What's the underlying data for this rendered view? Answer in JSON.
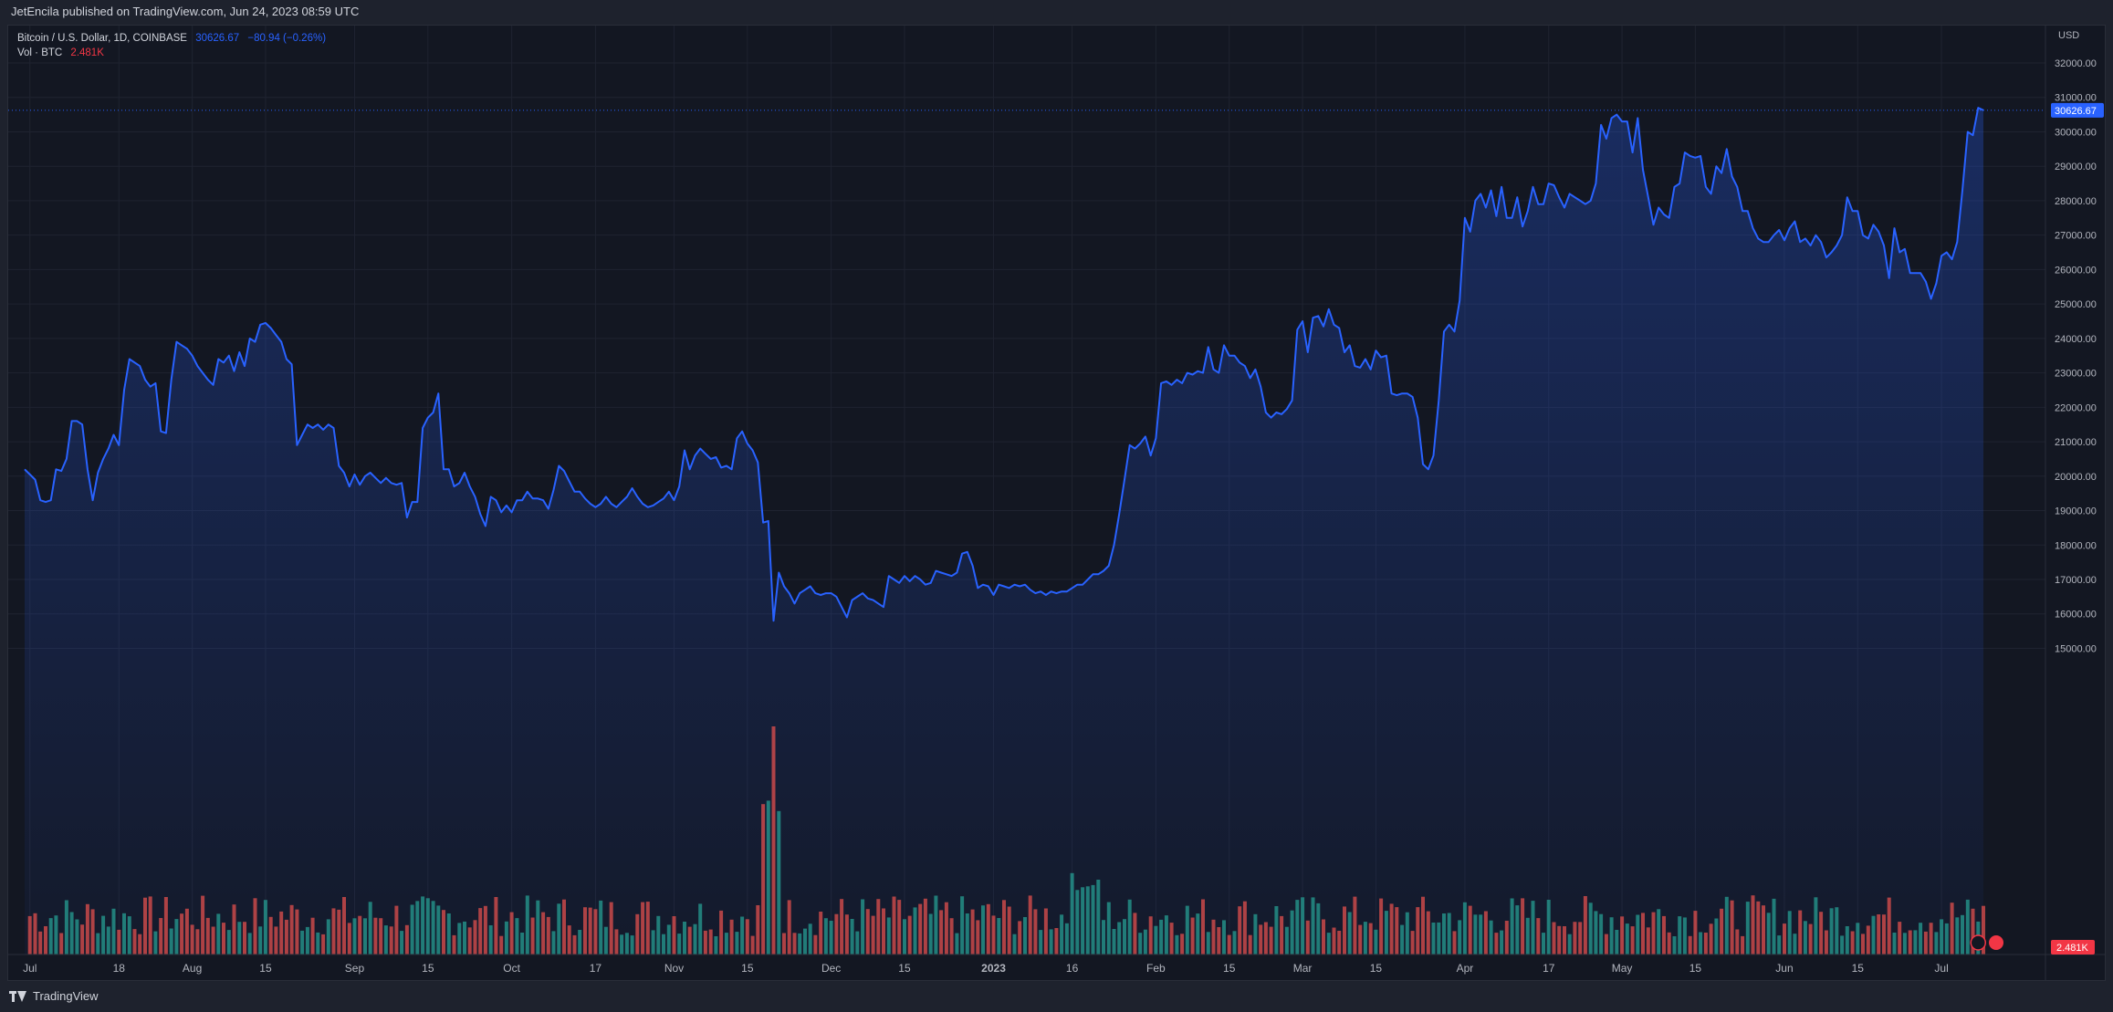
{
  "header": {
    "published": "JetEncila published on TradingView.com, Jun 24, 2023 08:59 UTC"
  },
  "legend": {
    "symbol": "Bitcoin / U.S. Dollar, 1D, COINBASE",
    "price": "30626.67",
    "change": "−80.94 (−0.26%)",
    "volume_label": "Vol · BTC",
    "volume_value": "2.481K"
  },
  "footer": {
    "brand": "TradingView"
  },
  "colors": {
    "line": "#2962ff",
    "up": "#26a69a",
    "down": "#ef5350",
    "bg": "#131722"
  },
  "chart_data": {
    "type": "area",
    "y_unit": "USD",
    "ylim": [
      14500,
      32500
    ],
    "y_ticks": [
      15000,
      16000,
      17000,
      18000,
      19000,
      20000,
      21000,
      22000,
      23000,
      24000,
      25000,
      26000,
      27000,
      28000,
      29000,
      30000,
      31000,
      32000
    ],
    "x_ticks": [
      {
        "label": "Jul",
        "day": 1
      },
      {
        "label": "18",
        "day": 18
      },
      {
        "label": "Aug",
        "day": 32
      },
      {
        "label": "15",
        "day": 46
      },
      {
        "label": "Sep",
        "day": 63
      },
      {
        "label": "15",
        "day": 77
      },
      {
        "label": "Oct",
        "day": 93
      },
      {
        "label": "17",
        "day": 109
      },
      {
        "label": "Nov",
        "day": 124
      },
      {
        "label": "15",
        "day": 138
      },
      {
        "label": "Dec",
        "day": 154
      },
      {
        "label": "15",
        "day": 168
      },
      {
        "label": "2023",
        "day": 185
      },
      {
        "label": "16",
        "day": 200
      },
      {
        "label": "Feb",
        "day": 216
      },
      {
        "label": "15",
        "day": 230
      },
      {
        "label": "Mar",
        "day": 244
      },
      {
        "label": "15",
        "day": 258
      },
      {
        "label": "Apr",
        "day": 275
      },
      {
        "label": "17",
        "day": 291
      },
      {
        "label": "May",
        "day": 305
      },
      {
        "label": "15",
        "day": 319
      },
      {
        "label": "Jun",
        "day": 336
      },
      {
        "label": "15",
        "day": 350
      },
      {
        "label": "Jul",
        "day": 366
      }
    ],
    "last_price": 30626.67,
    "last_volume": "2.481K",
    "x_range_days": [
      0,
      368
    ],
    "anchors": [
      [
        0,
        20200
      ],
      [
        1,
        20050
      ],
      [
        2,
        19900
      ],
      [
        3,
        19300
      ],
      [
        4,
        19250
      ],
      [
        5,
        19300
      ],
      [
        6,
        20200
      ],
      [
        7,
        20150
      ],
      [
        8,
        20500
      ],
      [
        9,
        21600
      ],
      [
        10,
        21600
      ],
      [
        11,
        21500
      ],
      [
        12,
        20200
      ],
      [
        13,
        19300
      ],
      [
        14,
        20100
      ],
      [
        15,
        20500
      ],
      [
        16,
        20800
      ],
      [
        17,
        21200
      ],
      [
        18,
        20900
      ],
      [
        19,
        22500
      ],
      [
        20,
        23400
      ],
      [
        21,
        23300
      ],
      [
        22,
        23200
      ],
      [
        23,
        22800
      ],
      [
        24,
        22600
      ],
      [
        25,
        22700
      ],
      [
        26,
        21300
      ],
      [
        27,
        21250
      ],
      [
        28,
        22800
      ],
      [
        29,
        23900
      ],
      [
        30,
        23800
      ],
      [
        31,
        23700
      ],
      [
        32,
        23500
      ],
      [
        33,
        23200
      ],
      [
        34,
        23000
      ],
      [
        35,
        22800
      ],
      [
        36,
        22650
      ],
      [
        37,
        23400
      ],
      [
        38,
        23300
      ],
      [
        39,
        23500
      ],
      [
        40,
        23050
      ],
      [
        41,
        23600
      ],
      [
        42,
        23200
      ],
      [
        43,
        24000
      ],
      [
        44,
        23900
      ],
      [
        45,
        24400
      ],
      [
        46,
        24450
      ],
      [
        47,
        24300
      ],
      [
        48,
        24100
      ],
      [
        49,
        23900
      ],
      [
        50,
        23400
      ],
      [
        51,
        23250
      ],
      [
        52,
        20900
      ],
      [
        53,
        21200
      ],
      [
        54,
        21500
      ],
      [
        55,
        21400
      ],
      [
        56,
        21500
      ],
      [
        57,
        21350
      ],
      [
        58,
        21500
      ],
      [
        59,
        21400
      ],
      [
        60,
        20300
      ],
      [
        61,
        20100
      ],
      [
        62,
        19700
      ],
      [
        63,
        20050
      ],
      [
        64,
        19750
      ],
      [
        65,
        20000
      ],
      [
        66,
        20100
      ],
      [
        67,
        19950
      ],
      [
        68,
        19800
      ],
      [
        69,
        19950
      ],
      [
        70,
        19800
      ],
      [
        71,
        19750
      ],
      [
        72,
        19800
      ],
      [
        73,
        18800
      ],
      [
        74,
        19250
      ],
      [
        75,
        19250
      ],
      [
        76,
        21400
      ],
      [
        77,
        21700
      ],
      [
        78,
        21850
      ],
      [
        79,
        22400
      ],
      [
        80,
        20200
      ],
      [
        81,
        20200
      ],
      [
        82,
        19700
      ],
      [
        83,
        19800
      ],
      [
        84,
        20100
      ],
      [
        85,
        19700
      ],
      [
        86,
        19400
      ],
      [
        87,
        18900
      ],
      [
        88,
        18550
      ],
      [
        89,
        19400
      ],
      [
        90,
        19300
      ],
      [
        91,
        18950
      ],
      [
        92,
        19150
      ],
      [
        93,
        18950
      ],
      [
        94,
        19300
      ],
      [
        95,
        19300
      ],
      [
        96,
        19550
      ],
      [
        97,
        19350
      ],
      [
        98,
        19350
      ],
      [
        99,
        19300
      ],
      [
        100,
        19050
      ],
      [
        101,
        19600
      ],
      [
        102,
        20300
      ],
      [
        103,
        20150
      ],
      [
        104,
        19850
      ],
      [
        105,
        19550
      ],
      [
        106,
        19550
      ],
      [
        107,
        19350
      ],
      [
        108,
        19200
      ],
      [
        109,
        19100
      ],
      [
        110,
        19200
      ],
      [
        111,
        19400
      ],
      [
        112,
        19200
      ],
      [
        113,
        19100
      ],
      [
        114,
        19250
      ],
      [
        115,
        19400
      ],
      [
        116,
        19650
      ],
      [
        117,
        19400
      ],
      [
        118,
        19200
      ],
      [
        119,
        19100
      ],
      [
        120,
        19150
      ],
      [
        121,
        19250
      ],
      [
        122,
        19350
      ],
      [
        123,
        19550
      ],
      [
        124,
        19300
      ],
      [
        125,
        19700
      ],
      [
        126,
        20750
      ],
      [
        127,
        20200
      ],
      [
        128,
        20600
      ],
      [
        129,
        20800
      ],
      [
        130,
        20650
      ],
      [
        131,
        20500
      ],
      [
        132,
        20550
      ],
      [
        133,
        20250
      ],
      [
        134,
        20300
      ],
      [
        135,
        20200
      ],
      [
        136,
        21100
      ],
      [
        137,
        21300
      ],
      [
        138,
        20950
      ],
      [
        139,
        20750
      ],
      [
        140,
        20400
      ],
      [
        141,
        18650
      ],
      [
        142,
        18700
      ],
      [
        143,
        15800
      ],
      [
        144,
        17200
      ],
      [
        145,
        16800
      ],
      [
        146,
        16600
      ],
      [
        147,
        16300
      ],
      [
        148,
        16600
      ],
      [
        149,
        16700
      ],
      [
        150,
        16800
      ],
      [
        151,
        16600
      ],
      [
        152,
        16550
      ],
      [
        153,
        16600
      ],
      [
        154,
        16600
      ],
      [
        155,
        16500
      ],
      [
        156,
        16200
      ],
      [
        157,
        15900
      ],
      [
        158,
        16400
      ],
      [
        159,
        16500
      ],
      [
        160,
        16600
      ],
      [
        161,
        16450
      ],
      [
        162,
        16400
      ],
      [
        163,
        16300
      ],
      [
        164,
        16200
      ],
      [
        165,
        17100
      ],
      [
        166,
        17000
      ],
      [
        167,
        16900
      ],
      [
        168,
        17100
      ],
      [
        169,
        16950
      ],
      [
        170,
        17100
      ],
      [
        171,
        17000
      ],
      [
        172,
        16850
      ],
      [
        173,
        16900
      ],
      [
        174,
        17250
      ],
      [
        175,
        17200
      ],
      [
        176,
        17150
      ],
      [
        177,
        17100
      ],
      [
        178,
        17200
      ],
      [
        179,
        17750
      ],
      [
        180,
        17800
      ],
      [
        181,
        17400
      ],
      [
        182,
        16750
      ],
      [
        183,
        16850
      ],
      [
        184,
        16800
      ],
      [
        185,
        16550
      ],
      [
        186,
        16850
      ],
      [
        187,
        16800
      ],
      [
        188,
        16750
      ],
      [
        189,
        16850
      ],
      [
        190,
        16800
      ],
      [
        191,
        16850
      ],
      [
        192,
        16700
      ],
      [
        193,
        16600
      ],
      [
        194,
        16650
      ],
      [
        195,
        16550
      ],
      [
        196,
        16650
      ],
      [
        197,
        16600
      ],
      [
        198,
        16650
      ],
      [
        199,
        16650
      ],
      [
        200,
        16750
      ],
      [
        201,
        16850
      ],
      [
        202,
        16850
      ],
      [
        203,
        17000
      ],
      [
        204,
        17150
      ],
      [
        205,
        17150
      ],
      [
        206,
        17250
      ],
      [
        207,
        17400
      ],
      [
        208,
        18000
      ],
      [
        209,
        18900
      ],
      [
        210,
        19900
      ],
      [
        211,
        20900
      ],
      [
        212,
        20800
      ],
      [
        213,
        20950
      ],
      [
        214,
        21150
      ],
      [
        215,
        20600
      ],
      [
        216,
        21100
      ],
      [
        217,
        22700
      ],
      [
        218,
        22750
      ],
      [
        219,
        22650
      ],
      [
        220,
        22800
      ],
      [
        221,
        22700
      ],
      [
        222,
        23000
      ],
      [
        223,
        22950
      ],
      [
        224,
        23050
      ],
      [
        225,
        23000
      ],
      [
        226,
        23750
      ],
      [
        227,
        23100
      ],
      [
        228,
        23000
      ],
      [
        229,
        23800
      ],
      [
        230,
        23500
      ],
      [
        231,
        23500
      ],
      [
        232,
        23300
      ],
      [
        233,
        23200
      ],
      [
        234,
        22850
      ],
      [
        235,
        23100
      ],
      [
        236,
        22600
      ],
      [
        237,
        21850
      ],
      [
        238,
        21700
      ],
      [
        239,
        21850
      ],
      [
        240,
        21800
      ],
      [
        241,
        21950
      ],
      [
        242,
        22200
      ],
      [
        243,
        24250
      ],
      [
        244,
        24500
      ],
      [
        245,
        23600
      ],
      [
        246,
        24600
      ],
      [
        247,
        24650
      ],
      [
        248,
        24350
      ],
      [
        249,
        24850
      ],
      [
        250,
        24400
      ],
      [
        251,
        24300
      ],
      [
        252,
        23600
      ],
      [
        253,
        23800
      ],
      [
        254,
        23200
      ],
      [
        255,
        23150
      ],
      [
        256,
        23400
      ],
      [
        257,
        23100
      ],
      [
        258,
        23650
      ],
      [
        259,
        23450
      ],
      [
        260,
        23500
      ],
      [
        261,
        22400
      ],
      [
        262,
        22350
      ],
      [
        263,
        22400
      ],
      [
        264,
        22400
      ],
      [
        265,
        22300
      ],
      [
        266,
        21700
      ],
      [
        267,
        20350
      ],
      [
        268,
        20200
      ],
      [
        269,
        20600
      ],
      [
        270,
        22200
      ],
      [
        271,
        24200
      ],
      [
        272,
        24400
      ],
      [
        273,
        24200
      ],
      [
        274,
        25100
      ],
      [
        275,
        27500
      ],
      [
        276,
        27100
      ],
      [
        277,
        28000
      ],
      [
        278,
        28200
      ],
      [
        279,
        27800
      ],
      [
        280,
        28300
      ],
      [
        281,
        27550
      ],
      [
        282,
        28400
      ],
      [
        283,
        27500
      ],
      [
        284,
        27500
      ],
      [
        285,
        28100
      ],
      [
        286,
        27250
      ],
      [
        287,
        27700
      ],
      [
        288,
        28400
      ],
      [
        289,
        27900
      ],
      [
        290,
        27900
      ],
      [
        291,
        28500
      ],
      [
        292,
        28450
      ],
      [
        293,
        28100
      ],
      [
        294,
        27800
      ],
      [
        295,
        28200
      ],
      [
        296,
        28100
      ],
      [
        297,
        28000
      ],
      [
        298,
        27900
      ],
      [
        299,
        28000
      ],
      [
        300,
        28500
      ],
      [
        301,
        30200
      ],
      [
        302,
        29800
      ],
      [
        303,
        30400
      ],
      [
        304,
        30500
      ],
      [
        305,
        30300
      ],
      [
        306,
        30300
      ],
      [
        307,
        29400
      ],
      [
        308,
        30400
      ],
      [
        309,
        28900
      ],
      [
        310,
        28100
      ],
      [
        311,
        27300
      ],
      [
        312,
        27800
      ],
      [
        313,
        27600
      ],
      [
        314,
        27500
      ],
      [
        315,
        28400
      ],
      [
        316,
        28500
      ],
      [
        317,
        29400
      ],
      [
        318,
        29300
      ],
      [
        319,
        29250
      ],
      [
        320,
        29300
      ],
      [
        321,
        28400
      ],
      [
        322,
        28200
      ],
      [
        323,
        29000
      ],
      [
        324,
        28800
      ],
      [
        325,
        29500
      ],
      [
        326,
        28700
      ],
      [
        327,
        28400
      ],
      [
        328,
        27700
      ],
      [
        329,
        27700
      ],
      [
        330,
        27200
      ],
      [
        331,
        26900
      ],
      [
        332,
        26800
      ],
      [
        333,
        26800
      ],
      [
        334,
        27000
      ],
      [
        335,
        27150
      ],
      [
        336,
        26850
      ],
      [
        337,
        27200
      ],
      [
        338,
        27400
      ],
      [
        339,
        26800
      ],
      [
        340,
        26900
      ],
      [
        341,
        26700
      ],
      [
        342,
        27000
      ],
      [
        343,
        26800
      ],
      [
        344,
        26350
      ],
      [
        345,
        26500
      ],
      [
        346,
        26700
      ],
      [
        347,
        27000
      ],
      [
        348,
        28100
      ],
      [
        349,
        27700
      ],
      [
        350,
        27700
      ],
      [
        351,
        27000
      ],
      [
        352,
        26900
      ],
      [
        353,
        27300
      ],
      [
        354,
        27100
      ],
      [
        355,
        26700
      ],
      [
        356,
        25750
      ],
      [
        357,
        27200
      ],
      [
        358,
        26500
      ],
      [
        359,
        26600
      ],
      [
        360,
        25900
      ],
      [
        361,
        25900
      ],
      [
        362,
        25900
      ],
      [
        363,
        25650
      ],
      [
        364,
        25150
      ],
      [
        365,
        25600
      ],
      [
        366,
        26400
      ],
      [
        367,
        26500
      ],
      [
        368,
        26300
      ],
      [
        369,
        26800
      ],
      [
        370,
        28300
      ],
      [
        371,
        30000
      ],
      [
        372,
        29900
      ],
      [
        373,
        30700
      ],
      [
        374,
        30626.67
      ]
    ]
  }
}
